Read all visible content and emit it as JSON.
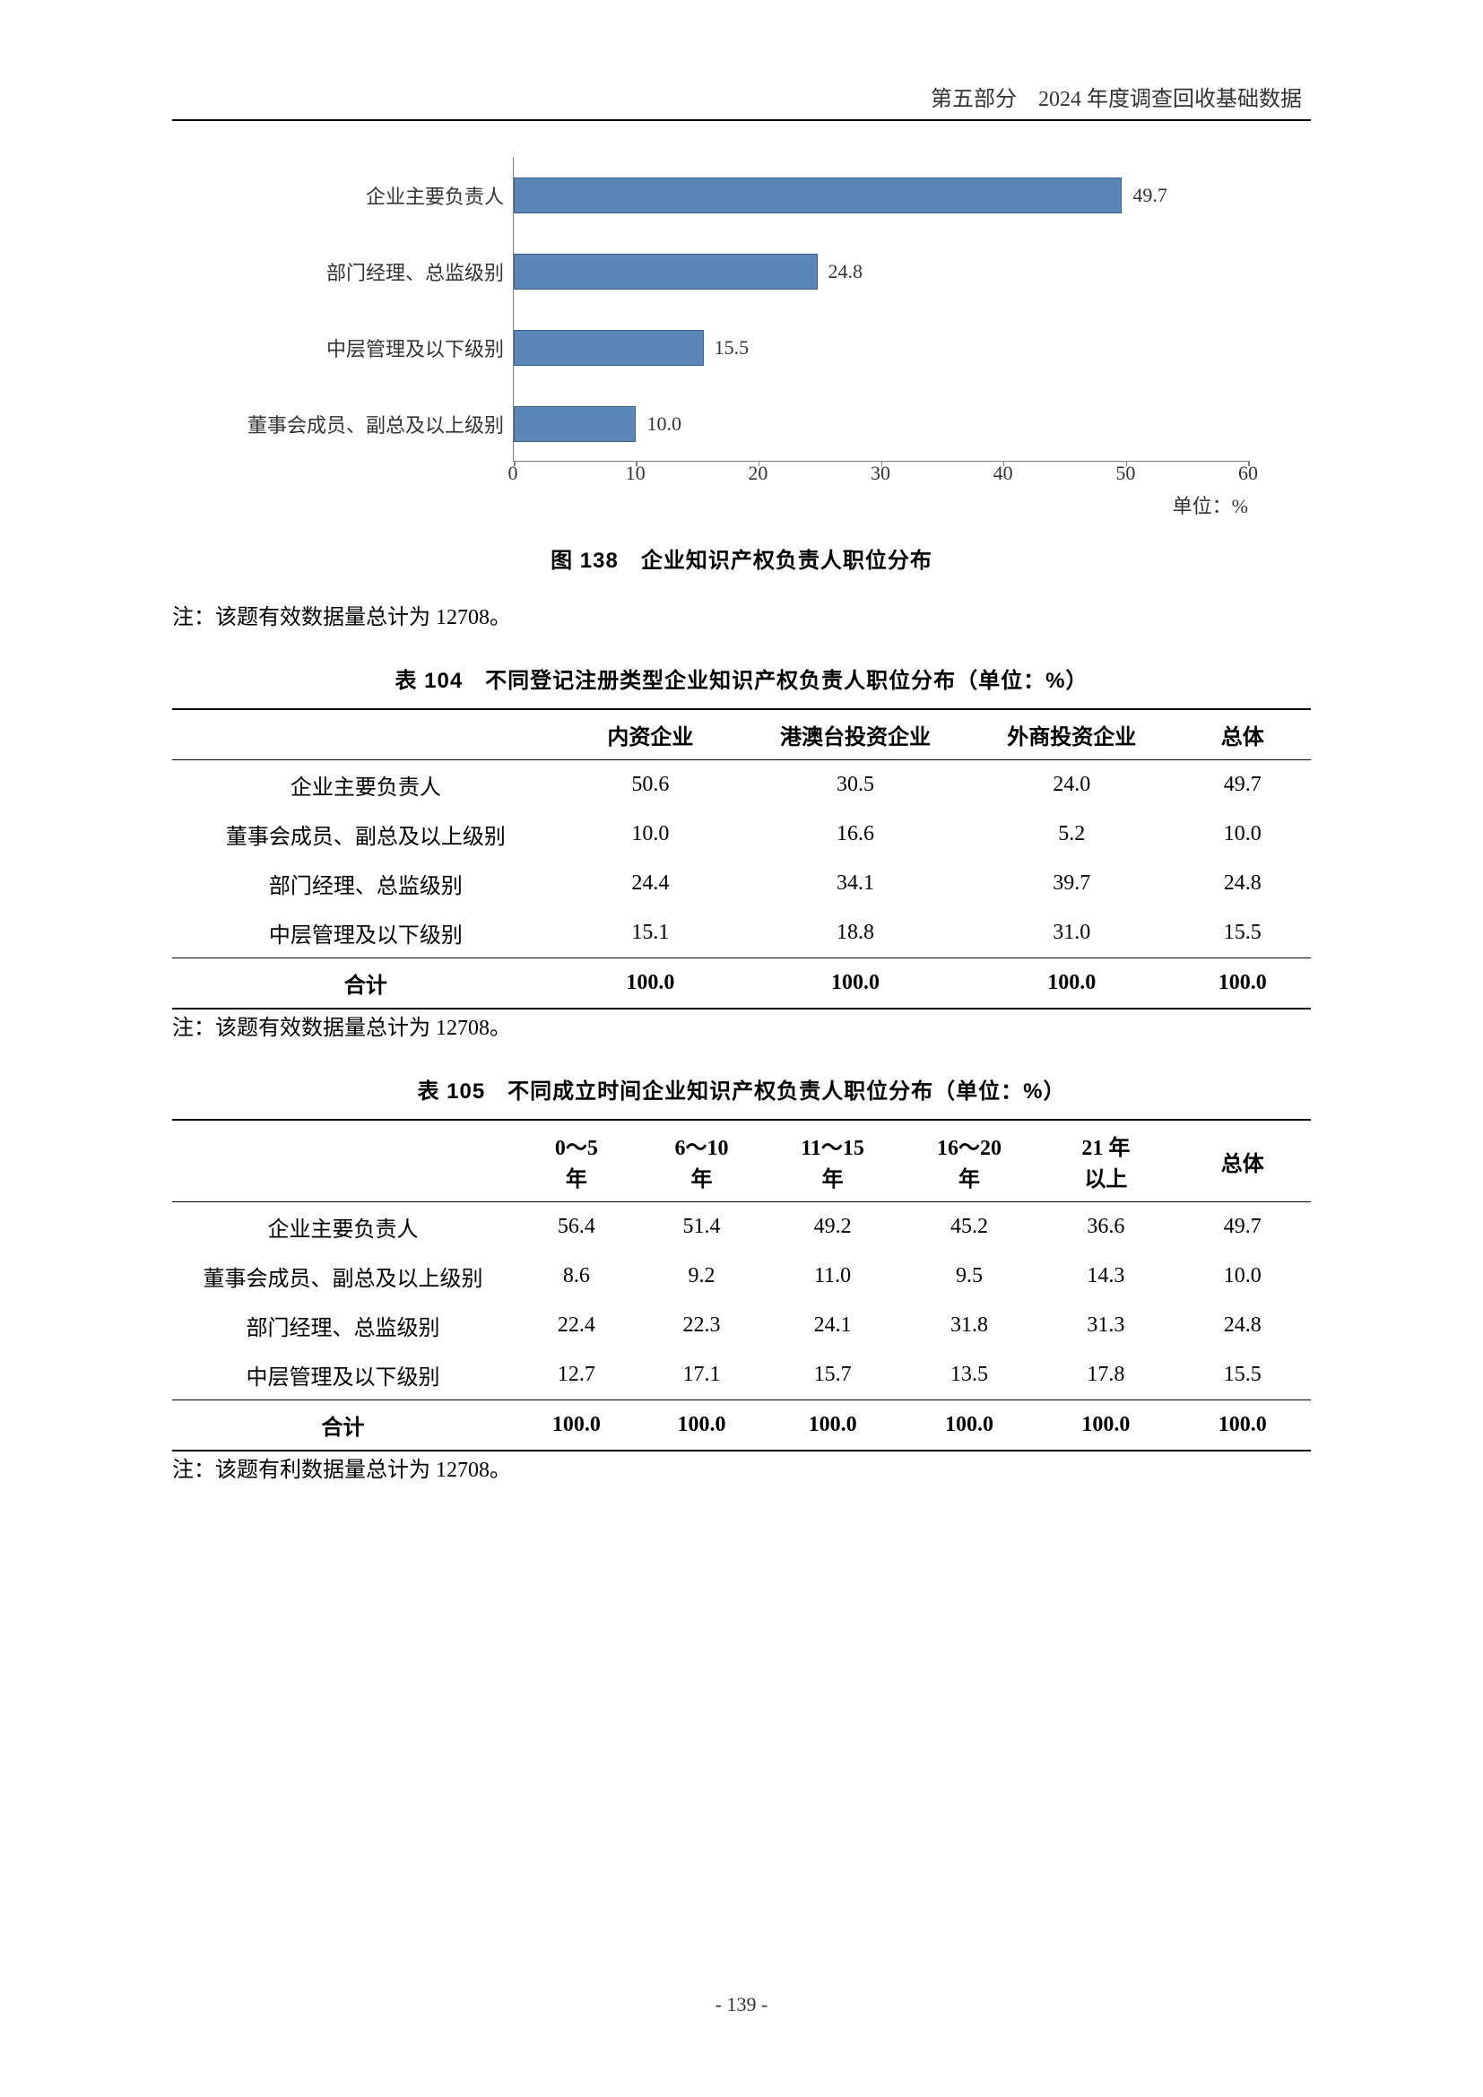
{
  "header": {
    "section": "第五部分",
    "title": "2024 年度调查回收基础数据"
  },
  "chart": {
    "type": "horizontal-bar",
    "categories": [
      "企业主要负责人",
      "部门经理、总监级别",
      "中层管理及以下级别",
      "董事会成员、副总及以上级别"
    ],
    "values": [
      49.7,
      24.8,
      15.5,
      10.0
    ],
    "value_labels": [
      "49.7",
      "24.8",
      "15.5",
      "10.0"
    ],
    "bar_color": "#5b87b8",
    "bar_border_color": "#3a5f8f",
    "axis_color": "#808080",
    "xlim": [
      0,
      60
    ],
    "xtick_step": 10,
    "xticks": [
      "0",
      "10",
      "20",
      "30",
      "40",
      "50",
      "60"
    ],
    "unit_label": "单位：%",
    "caption": "图 138　企业知识产权负责人职位分布",
    "note": "注：该题有效数据量总计为 12708。"
  },
  "table104": {
    "caption": "表 104　不同登记注册类型企业知识产权负责人职位分布（单位：%）",
    "columns": [
      "",
      "内资企业",
      "港澳台投资企业",
      "外商投资企业",
      "总体"
    ],
    "rows": [
      [
        "企业主要负责人",
        "50.6",
        "30.5",
        "24.0",
        "49.7"
      ],
      [
        "董事会成员、副总及以上级别",
        "10.0",
        "16.6",
        "5.2",
        "10.0"
      ],
      [
        "部门经理、总监级别",
        "24.4",
        "34.1",
        "39.7",
        "24.8"
      ],
      [
        "中层管理及以下级别",
        "15.1",
        "18.8",
        "31.0",
        "15.5"
      ]
    ],
    "total_row": [
      "合计",
      "100.0",
      "100.0",
      "100.0",
      "100.0"
    ],
    "note": "注：该题有效数据量总计为 12708。"
  },
  "table105": {
    "caption": "表 105　不同成立时间企业知识产权负责人职位分布（单位：%）",
    "columns": [
      "",
      "0～5\n年",
      "6～10\n年",
      "11～15\n年",
      "16～20\n年",
      "21 年\n以上",
      "总体"
    ],
    "rows": [
      [
        "企业主要负责人",
        "56.4",
        "51.4",
        "49.2",
        "45.2",
        "36.6",
        "49.7"
      ],
      [
        "董事会成员、副总及以上级别",
        "8.6",
        "9.2",
        "11.0",
        "9.5",
        "14.3",
        "10.0"
      ],
      [
        "部门经理、总监级别",
        "22.4",
        "22.3",
        "24.1",
        "31.8",
        "31.3",
        "24.8"
      ],
      [
        "中层管理及以下级别",
        "12.7",
        "17.1",
        "15.7",
        "13.5",
        "17.8",
        "15.5"
      ]
    ],
    "total_row": [
      "合计",
      "100.0",
      "100.0",
      "100.0",
      "100.0",
      "100.0",
      "100.0"
    ],
    "note": "注：该题有利数据量总计为 12708。"
  },
  "page_number": "- 139 -"
}
